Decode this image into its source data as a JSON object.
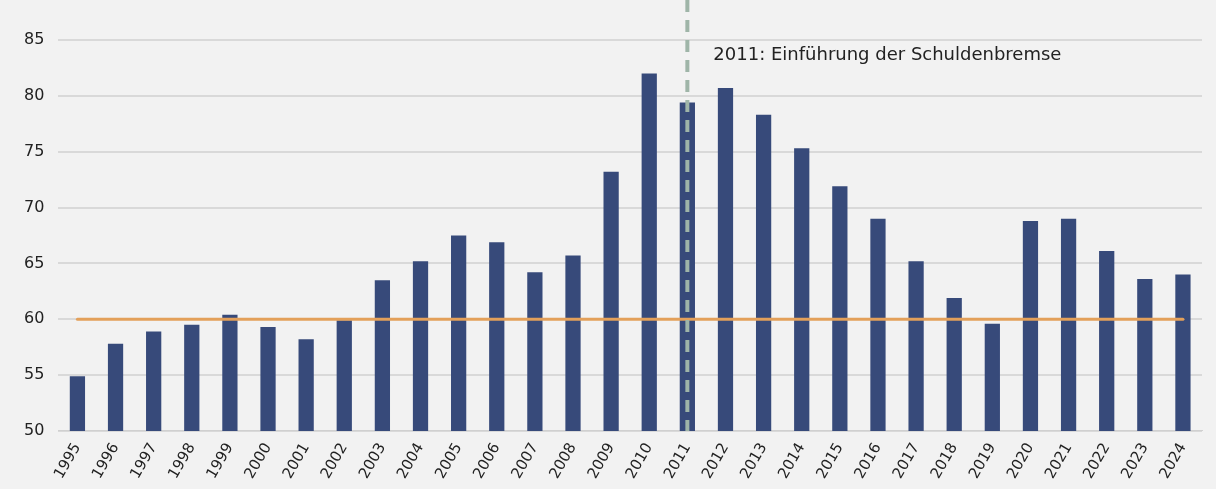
{
  "chart_data": {
    "type": "bar",
    "categories": [
      "1995",
      "1996",
      "1997",
      "1998",
      "1999",
      "2000",
      "2001",
      "2002",
      "2003",
      "2004",
      "2005",
      "2006",
      "2007",
      "2008",
      "2009",
      "2010",
      "2011",
      "2012",
      "2013",
      "2014",
      "2015",
      "2016",
      "2017",
      "2018",
      "2019",
      "2020",
      "2021",
      "2022",
      "2023",
      "2024"
    ],
    "values": [
      54.9,
      57.8,
      58.9,
      59.5,
      60.4,
      59.3,
      58.2,
      59.9,
      63.5,
      65.2,
      67.5,
      66.9,
      64.2,
      65.7,
      73.2,
      82.0,
      79.4,
      80.7,
      78.3,
      75.3,
      71.9,
      69.0,
      65.2,
      61.9,
      59.6,
      68.8,
      69.0,
      66.1,
      63.6,
      64.0
    ],
    "color": "#374a7a",
    "ylim": [
      50,
      85
    ],
    "yticks": [
      50,
      55,
      60,
      65,
      70,
      75,
      80,
      85
    ],
    "grid": "y",
    "ref_lines": [
      {
        "axis": "y",
        "value": 60,
        "color": "#e3a05a",
        "line_style": "solid"
      },
      {
        "axis": "x",
        "value": "2011",
        "label": "2011: Einführung der Schuldenbremse",
        "color": "#9fb5a8",
        "line_style": "dashed"
      }
    ]
  }
}
